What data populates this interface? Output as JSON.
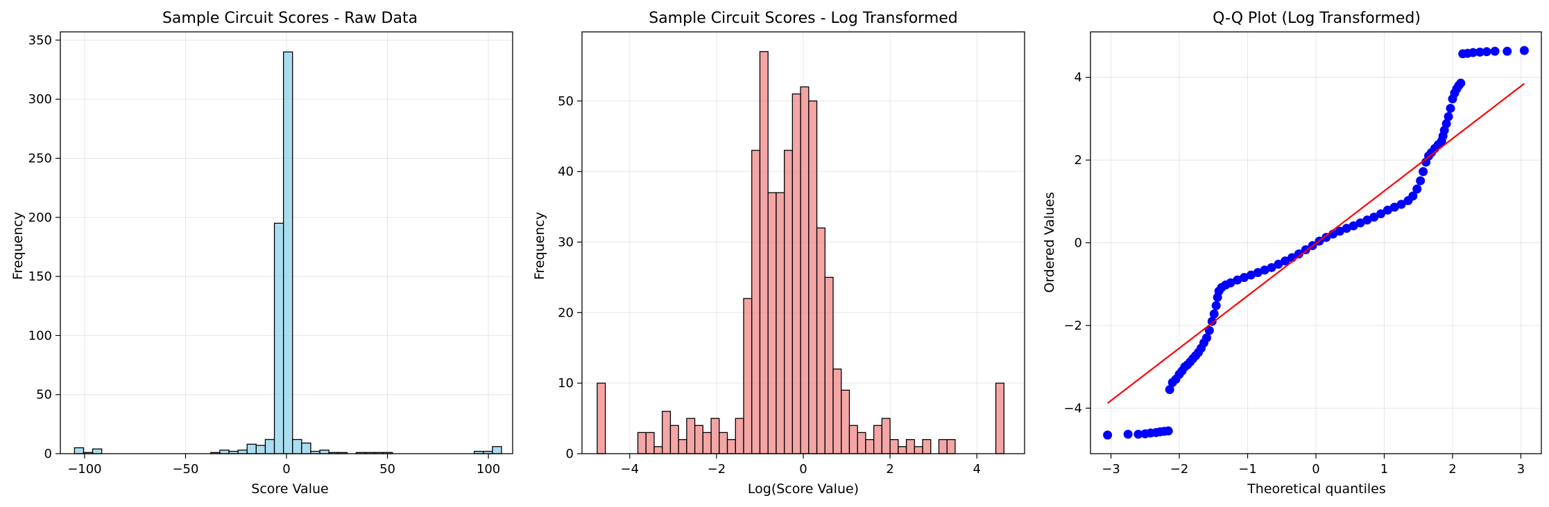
{
  "chart_data": [
    {
      "type": "histogram",
      "title": "Sample Circuit Scores - Raw Data",
      "xlabel": "Score Value",
      "ylabel": "Frequency",
      "xlim": [
        -112,
        112
      ],
      "ylim": [
        0,
        357
      ],
      "xticks": [
        -100,
        -50,
        0,
        50,
        100
      ],
      "yticks": [
        0,
        50,
        100,
        150,
        200,
        250,
        300,
        350
      ],
      "grid": true,
      "bar_color": "#87ceeb",
      "bar_edge": "#000000",
      "bins": [
        {
          "x0": -105,
          "x1": -100.5,
          "count": 5
        },
        {
          "x0": -100.5,
          "x1": -96,
          "count": 1
        },
        {
          "x0": -96,
          "x1": -91.5,
          "count": 4
        },
        {
          "x0": -37.5,
          "x1": -33,
          "count": 1
        },
        {
          "x0": -33,
          "x1": -28.5,
          "count": 3
        },
        {
          "x0": -28.5,
          "x1": -24,
          "count": 2
        },
        {
          "x0": -24,
          "x1": -19.5,
          "count": 3
        },
        {
          "x0": -19.5,
          "x1": -15,
          "count": 8
        },
        {
          "x0": -15,
          "x1": -10.5,
          "count": 7
        },
        {
          "x0": -10.5,
          "x1": -6,
          "count": 12
        },
        {
          "x0": -6,
          "x1": -1.5,
          "count": 195
        },
        {
          "x0": -1.5,
          "x1": 3,
          "count": 340
        },
        {
          "x0": 3,
          "x1": 7.5,
          "count": 12
        },
        {
          "x0": 7.5,
          "x1": 12,
          "count": 9
        },
        {
          "x0": 12,
          "x1": 16.5,
          "count": 2
        },
        {
          "x0": 16.5,
          "x1": 21,
          "count": 3
        },
        {
          "x0": 21,
          "x1": 25.5,
          "count": 1
        },
        {
          "x0": 25.5,
          "x1": 30,
          "count": 1
        },
        {
          "x0": 34.5,
          "x1": 39,
          "count": 1
        },
        {
          "x0": 39,
          "x1": 43.5,
          "count": 1
        },
        {
          "x0": 43.5,
          "x1": 48,
          "count": 1
        },
        {
          "x0": 48,
          "x1": 52.5,
          "count": 1
        },
        {
          "x0": 93,
          "x1": 97.5,
          "count": 2
        },
        {
          "x0": 97.5,
          "x1": 102,
          "count": 2
        },
        {
          "x0": 102,
          "x1": 106.5,
          "count": 6
        }
      ]
    },
    {
      "type": "histogram",
      "title": "Sample Circuit Scores - Log Transformed",
      "xlabel": "Log(Score Value)",
      "ylabel": "Frequency",
      "xlim": [
        -5.1,
        5.1
      ],
      "ylim": [
        0,
        59.8
      ],
      "xticks": [
        -4,
        -2,
        0,
        2,
        4
      ],
      "yticks": [
        0,
        10,
        20,
        30,
        40,
        50
      ],
      "grid": true,
      "bar_color": "#f08080",
      "bar_edge": "#000000",
      "bin_start": -4.75,
      "bin_width": 0.1875,
      "counts": [
        10,
        0,
        0,
        0,
        0,
        3,
        3,
        1,
        6,
        4,
        2,
        5,
        4,
        3,
        5,
        3,
        2,
        5,
        22,
        43,
        57,
        37,
        37,
        43,
        51,
        52,
        50,
        32,
        25,
        12,
        9,
        4,
        3,
        2,
        4,
        5,
        2,
        1,
        2,
        1,
        2,
        0,
        2,
        2,
        0,
        0,
        0,
        0,
        0,
        10
      ]
    },
    {
      "type": "scatter",
      "title": "Q-Q Plot (Log Transformed)",
      "xlabel": "Theoretical quantiles",
      "ylabel": "Ordered Values",
      "xlim": [
        -3.3,
        3.3
      ],
      "ylim": [
        -5.1,
        5.1
      ],
      "xticks": [
        -3,
        -2,
        -1,
        0,
        1,
        2,
        3
      ],
      "yticks": [
        -4,
        -2,
        0,
        2,
        4
      ],
      "grid": true,
      "point_color": "#0000ff",
      "fit_line": {
        "x": [
          -3.05,
          3.05
        ],
        "y": [
          -3.88,
          3.85
        ],
        "color": "#ff0000"
      },
      "points": [
        [
          -3.05,
          -4.65
        ],
        [
          -2.75,
          -4.63
        ],
        [
          -2.6,
          -4.63
        ],
        [
          -2.5,
          -4.62
        ],
        [
          -2.42,
          -4.6
        ],
        [
          -2.34,
          -4.59
        ],
        [
          -2.28,
          -4.57
        ],
        [
          -2.22,
          -4.56
        ],
        [
          -2.16,
          -4.55
        ],
        [
          -2.14,
          -3.55
        ],
        [
          -2.1,
          -3.38
        ],
        [
          -2.05,
          -3.3
        ],
        [
          -2.0,
          -3.18
        ],
        [
          -1.96,
          -3.1
        ],
        [
          -1.92,
          -3.0
        ],
        [
          -1.88,
          -2.95
        ],
        [
          -1.84,
          -2.88
        ],
        [
          -1.8,
          -2.8
        ],
        [
          -1.76,
          -2.73
        ],
        [
          -1.72,
          -2.65
        ],
        [
          -1.68,
          -2.55
        ],
        [
          -1.64,
          -2.42
        ],
        [
          -1.6,
          -2.3
        ],
        [
          -1.56,
          -2.12
        ],
        [
          -1.52,
          -1.9
        ],
        [
          -1.49,
          -1.72
        ],
        [
          -1.46,
          -1.52
        ],
        [
          -1.44,
          -1.32
        ],
        [
          -1.42,
          -1.17
        ],
        [
          -1.38,
          -1.08
        ],
        [
          -1.32,
          -1.02
        ],
        [
          -1.25,
          -0.97
        ],
        [
          -1.15,
          -0.9
        ],
        [
          -1.05,
          -0.84
        ],
        [
          -0.95,
          -0.78
        ],
        [
          -0.85,
          -0.72
        ],
        [
          -0.75,
          -0.66
        ],
        [
          -0.65,
          -0.6
        ],
        [
          -0.55,
          -0.52
        ],
        [
          -0.45,
          -0.44
        ],
        [
          -0.35,
          -0.36
        ],
        [
          -0.25,
          -0.27
        ],
        [
          -0.15,
          -0.17
        ],
        [
          -0.05,
          -0.07
        ],
        [
          0.05,
          0.04
        ],
        [
          0.15,
          0.13
        ],
        [
          0.25,
          0.21
        ],
        [
          0.35,
          0.28
        ],
        [
          0.45,
          0.35
        ],
        [
          0.55,
          0.41
        ],
        [
          0.65,
          0.48
        ],
        [
          0.75,
          0.55
        ],
        [
          0.85,
          0.62
        ],
        [
          0.95,
          0.7
        ],
        [
          1.05,
          0.79
        ],
        [
          1.15,
          0.86
        ],
        [
          1.25,
          0.93
        ],
        [
          1.35,
          1.02
        ],
        [
          1.42,
          1.13
        ],
        [
          1.48,
          1.3
        ],
        [
          1.53,
          1.5
        ],
        [
          1.57,
          1.72
        ],
        [
          1.61,
          1.95
        ],
        [
          1.65,
          2.1
        ],
        [
          1.69,
          2.18
        ],
        [
          1.74,
          2.28
        ],
        [
          1.79,
          2.37
        ],
        [
          1.84,
          2.46
        ],
        [
          1.86,
          2.58
        ],
        [
          1.88,
          2.72
        ],
        [
          1.91,
          2.88
        ],
        [
          1.94,
          3.05
        ],
        [
          1.97,
          3.25
        ],
        [
          2.0,
          3.48
        ],
        [
          2.03,
          3.62
        ],
        [
          2.06,
          3.72
        ],
        [
          2.09,
          3.8
        ],
        [
          2.12,
          3.86
        ],
        [
          2.15,
          4.57
        ],
        [
          2.22,
          4.58
        ],
        [
          2.3,
          4.6
        ],
        [
          2.4,
          4.61
        ],
        [
          2.5,
          4.62
        ],
        [
          2.62,
          4.63
        ],
        [
          2.8,
          4.63
        ],
        [
          3.05,
          4.65
        ]
      ]
    }
  ]
}
